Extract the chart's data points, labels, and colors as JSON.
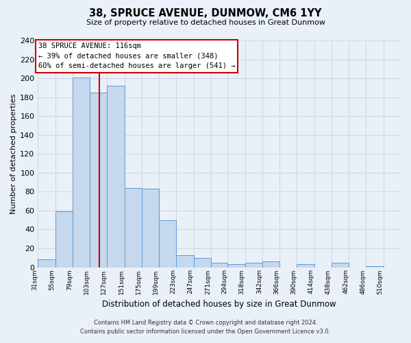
{
  "title": "38, SPRUCE AVENUE, DUNMOW, CM6 1YY",
  "subtitle": "Size of property relative to detached houses in Great Dunmow",
  "xlabel": "Distribution of detached houses by size in Great Dunmow",
  "ylabel": "Number of detached properties",
  "footnote1": "Contains HM Land Registry data © Crown copyright and database right 2024.",
  "footnote2": "Contains public sector information licensed under the Open Government Licence v3.0.",
  "annotation_line1": "38 SPRUCE AVENUE: 116sqm",
  "annotation_line2": "← 39% of detached houses are smaller (348)",
  "annotation_line3": "60% of semi-detached houses are larger (541) →",
  "bar_labels": [
    "31sqm",
    "55sqm",
    "79sqm",
    "103sqm",
    "127sqm",
    "151sqm",
    "175sqm",
    "199sqm",
    "223sqm",
    "247sqm",
    "271sqm",
    "294sqm",
    "318sqm",
    "342sqm",
    "366sqm",
    "390sqm",
    "414sqm",
    "438sqm",
    "462sqm",
    "486sqm",
    "510sqm"
  ],
  "bar_values": [
    8,
    59,
    201,
    185,
    192,
    84,
    83,
    50,
    13,
    10,
    5,
    3,
    5,
    6,
    0,
    3,
    0,
    5,
    0,
    1,
    0
  ],
  "bar_color": "#c5d8ed",
  "bar_edge_color": "#5b9bd5",
  "vline_color": "#cc0000",
  "bin_edges": [
    31,
    55,
    79,
    103,
    127,
    151,
    175,
    199,
    223,
    247,
    271,
    294,
    318,
    342,
    366,
    390,
    414,
    438,
    462,
    486,
    510,
    534
  ],
  "ylim": [
    0,
    240
  ],
  "yticks": [
    0,
    20,
    40,
    60,
    80,
    100,
    120,
    140,
    160,
    180,
    200,
    220,
    240
  ],
  "annotation_box_color": "#ffffff",
  "annotation_box_edge": "#cc0000",
  "grid_color": "#d0d8e4",
  "bg_color": "#eaf0f8"
}
